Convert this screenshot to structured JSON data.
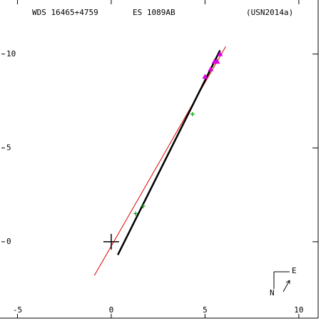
{
  "chart_data": {
    "type": "scatter",
    "labels": [
      "WDS 16465+4759",
      "ES 1089AB",
      "(USN2014a)"
    ],
    "compass": {
      "east": "E",
      "north": "N"
    },
    "xlim": [
      -5.55,
      11.03
    ],
    "ylim": [
      -4.07,
      12.5
    ],
    "xticks": [
      -5,
      0,
      5,
      10
    ],
    "yticks": [
      0,
      5,
      10
    ],
    "primary": {
      "x": 0,
      "y": 0,
      "color": "#000000"
    },
    "series": [
      {
        "marker": "line",
        "color": "#e00000",
        "width": 1,
        "x": [
          -0.9,
          6.1
        ],
        "y": [
          -1.8,
          10.4
        ]
      },
      {
        "marker": "line",
        "color": "#000000",
        "width": 2.5,
        "x": [
          0.35,
          5.8
        ],
        "y": [
          -0.7,
          10.2
        ]
      },
      {
        "marker": "plus",
        "color": "#00a000",
        "x": [
          1.3,
          1.7,
          4.33
        ],
        "y": [
          1.5,
          1.9,
          6.8
        ]
      },
      {
        "marker": "triangle",
        "color": "#e000e0",
        "x": [
          5.0,
          5.3,
          5.5,
          5.65,
          5.8
        ],
        "y": [
          8.8,
          9.2,
          9.6,
          9.6,
          10.0
        ]
      }
    ]
  }
}
